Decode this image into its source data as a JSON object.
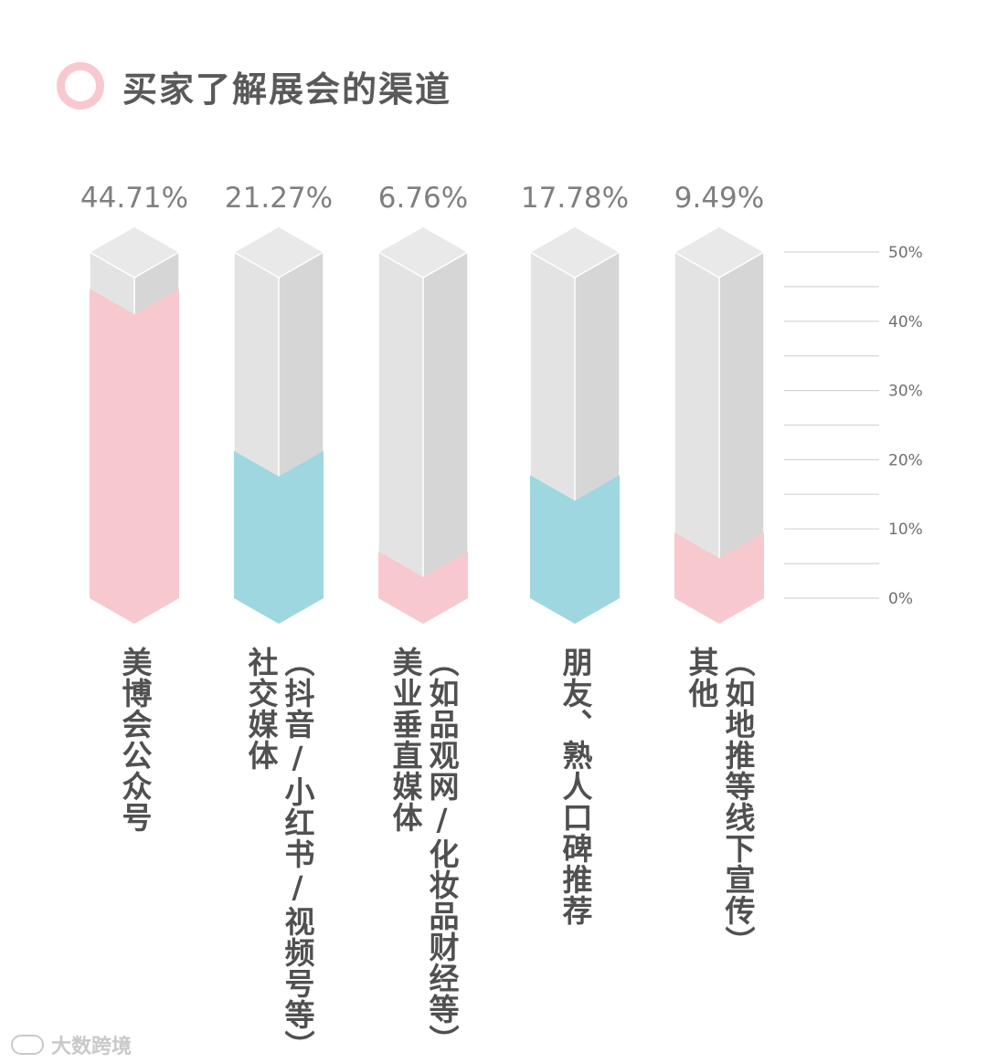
{
  "title": "买家了解展会的渠道",
  "watermark": "大数跨境",
  "colors": {
    "pink": "#f7c9cf",
    "teal": "#9ed7e0",
    "grey_front": "#e3e3e3",
    "grey_side": "#d6d6d6",
    "grey_top": "#e9e9e9",
    "axis_line": "#d4d4d4",
    "value_text": "#7f7f7f",
    "tick_text": "#6f6f6f"
  },
  "chart_data": {
    "type": "bar",
    "categories": [
      "美博会公众号",
      "社交媒体",
      "（抖音/小红书/视频号等）",
      "美业垂直媒体",
      "（如品观网/化妆品财经等）",
      "朋友、熟人口碑推荐",
      "其他",
      "（如地推等线下宣传）"
    ],
    "bars": [
      {
        "lines": [
          "美博会公众号"
        ],
        "value": 44.71,
        "label": "44.71%",
        "color": "pink"
      },
      {
        "lines": [
          "社交媒体",
          "（抖音/小红书/视频号等）"
        ],
        "value": 21.27,
        "label": "21.27%",
        "color": "teal"
      },
      {
        "lines": [
          "美业垂直媒体",
          "（如品观网/化妆品财经等）"
        ],
        "value": 6.76,
        "label": "6.76%",
        "color": "pink"
      },
      {
        "lines": [
          "朋友、熟人口碑推荐"
        ],
        "value": 17.78,
        "label": "17.78%",
        "color": "teal"
      },
      {
        "lines": [
          "其他",
          "（如地推等线下宣传）"
        ],
        "value": 9.49,
        "label": "9.49%",
        "color": "pink"
      }
    ],
    "yticks": [
      "50%",
      "40%",
      "30%",
      "20%",
      "10%",
      "0%"
    ],
    "ytick_values": [
      50,
      40,
      30,
      20,
      10,
      0
    ],
    "ylim": [
      0,
      50
    ],
    "grid": true
  }
}
